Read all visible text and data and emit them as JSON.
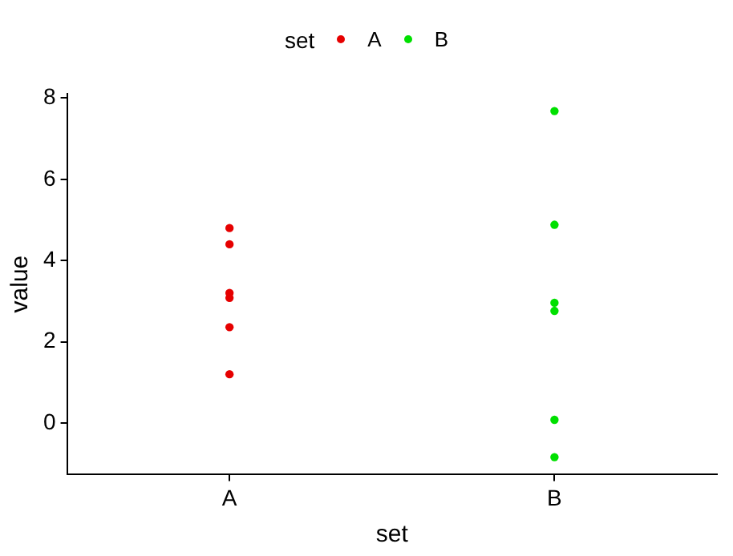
{
  "chart_data": {
    "type": "scatter",
    "xlabel": "set",
    "ylabel": "value",
    "legend_title": "set",
    "legend": "top",
    "grid": false,
    "marker": "circle",
    "categories": [
      "A",
      "B"
    ],
    "ylim": [
      -1.27,
      8.11
    ],
    "yticks": [
      0,
      2,
      4,
      6,
      8
    ],
    "series": [
      {
        "name": "A",
        "color": "#e60000",
        "x": [
          "A",
          "A",
          "A",
          "A",
          "A",
          "A"
        ],
        "values": [
          4.8,
          4.4,
          3.08,
          3.2,
          2.36,
          1.2
        ]
      },
      {
        "name": "B",
        "color": "#00e000",
        "x": [
          "B",
          "B",
          "B",
          "B",
          "B",
          "B"
        ],
        "values": [
          7.68,
          4.88,
          2.96,
          2.76,
          0.08,
          -0.84
        ]
      }
    ]
  }
}
